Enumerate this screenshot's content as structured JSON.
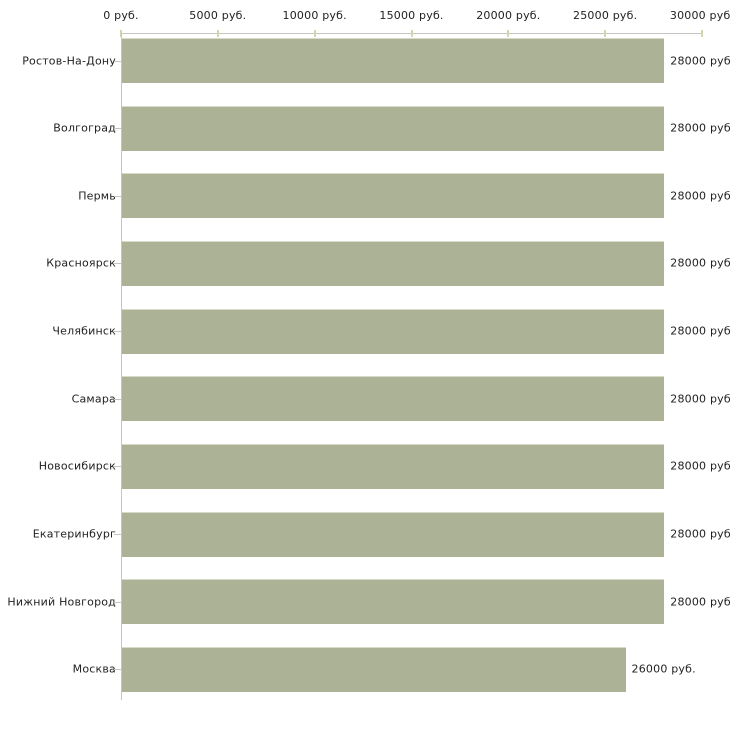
{
  "chart_data": {
    "type": "bar",
    "orientation": "horizontal",
    "title": "",
    "xlabel": "",
    "ylabel": "",
    "unit": "руб.",
    "categories": [
      "Ростов-На-Дону",
      "Волгоград",
      "Пермь",
      "Красноярск",
      "Челябинск",
      "Самара",
      "Новосибирск",
      "Екатеринбург",
      "Нижний Новгород",
      "Москва"
    ],
    "values": [
      28000,
      28000,
      28000,
      28000,
      28000,
      28000,
      28000,
      28000,
      28000,
      26000
    ],
    "value_labels": [
      "28000 руб.",
      "28000 руб.",
      "28000 руб.",
      "28000 руб.",
      "28000 руб.",
      "28000 руб.",
      "28000 руб.",
      "28000 руб.",
      "28000 руб.",
      "26000 руб."
    ],
    "xlim": [
      0,
      30000
    ],
    "x_ticks": [
      0,
      5000,
      10000,
      15000,
      20000,
      25000,
      30000
    ],
    "x_tick_labels": [
      "0 руб.",
      "5000 руб.",
      "10000 руб.",
      "15000 руб.",
      "20000 руб.",
      "25000 руб.",
      "30000 руб."
    ],
    "grid": false,
    "legend": false,
    "axis_position": "top",
    "colors": {
      "background": "#ffffff",
      "bar_fill": "#abb295",
      "bar_top_edge": "#d9dbc9",
      "axis_line": "#c5c5c5",
      "tick_mark": "#d3d6aa",
      "category_tick": "#c5c5c5",
      "text": "#222222"
    }
  }
}
